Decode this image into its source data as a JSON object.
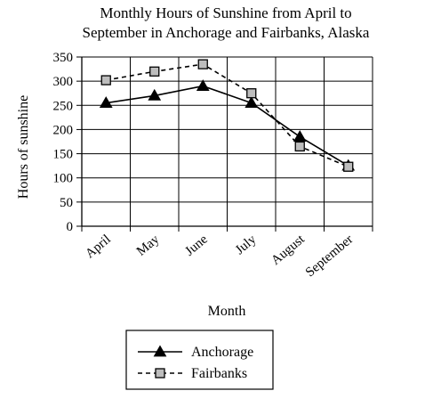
{
  "chart_data": {
    "type": "line",
    "title_lines": [
      "Monthly Hours of Sunshine from April to",
      "September in Anchorage and Fairbanks, Alaska"
    ],
    "xlabel": "Month",
    "ylabel": "Hours of sunshine",
    "categories": [
      "April",
      "May",
      "June",
      "July",
      "August",
      "September"
    ],
    "ylim": [
      0,
      350
    ],
    "yticks": [
      0,
      50,
      100,
      150,
      200,
      250,
      300,
      350
    ],
    "grid": true,
    "legend_position": "bottom",
    "series": [
      {
        "name": "Anchorage",
        "values": [
          255,
          270,
          290,
          255,
          185,
          125
        ],
        "marker": "triangle",
        "line_style": "solid",
        "color": "#000000"
      },
      {
        "name": "Fairbanks",
        "values": [
          302,
          320,
          335,
          275,
          165,
          123
        ],
        "marker": "square",
        "line_style": "dashed",
        "color": "#000000",
        "marker_fill": "#bdbdbd"
      }
    ]
  }
}
